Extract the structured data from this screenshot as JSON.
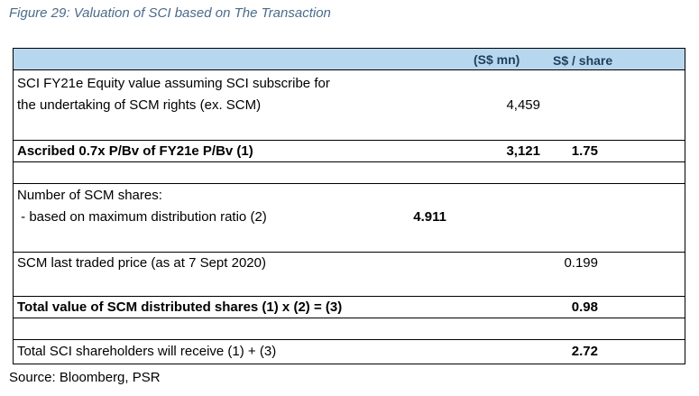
{
  "caption": "Figure 29: Valuation of SCI based on The Transaction",
  "source": "Source: Bloomberg, PSR",
  "header": {
    "col_mn": "(S$ mn)",
    "col_share": "S$ / share"
  },
  "rows": {
    "equity_line1": "SCI FY21e Equity value assuming SCI subscribe for",
    "equity_line2": "the undertaking of SCM rights (ex. SCM)",
    "equity_mn": "4,459",
    "ascribed_label": "Ascribed 0.7x P/Bv of FY21e P/Bv (1)",
    "ascribed_mn": "3,121",
    "ascribed_share": "1.75",
    "shares_line1": "Number of SCM shares:",
    "shares_line2": " - based on maximum distribution ratio (2)",
    "shares_ratio": "4.911",
    "price_label": "SCM last traded price (as at 7 Sept 2020)",
    "price_share": "0.199",
    "total_scm_label": "Total value of SCM distributed shares (1) x (2) = (3)",
    "total_scm_share": "0.98",
    "total_sci_label": "Total SCI shareholders will receive (1) + (3)",
    "total_sci_share": "2.72"
  }
}
